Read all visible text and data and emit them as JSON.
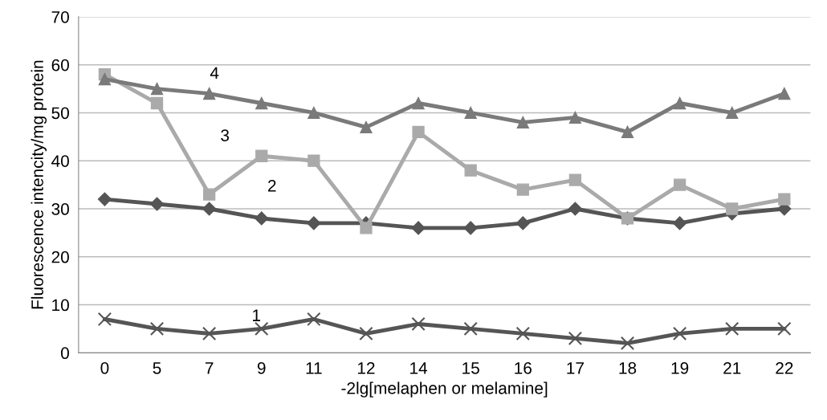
{
  "chart_data": {
    "type": "line",
    "xlabel": "-2lg[melaphen or melamine]",
    "ylabel": "Fluorescence intencity/mg protein",
    "categories": [
      "0",
      "5",
      "7",
      "9",
      "11",
      "12",
      "14",
      "15",
      "16",
      "17",
      "18",
      "19",
      "21",
      "22"
    ],
    "ylim": [
      0,
      70
    ],
    "yticks": [
      0,
      10,
      20,
      30,
      40,
      50,
      60,
      70
    ],
    "grid": "y",
    "legend": false,
    "series": [
      {
        "name": "1",
        "color": "#555555",
        "marker": "cross",
        "values": [
          7,
          5,
          4,
          5,
          7,
          4,
          6,
          5,
          4,
          3,
          2,
          4,
          5,
          5
        ]
      },
      {
        "name": "2",
        "color": "#555555",
        "marker": "diamond",
        "values": [
          32,
          31,
          30,
          28,
          27,
          27,
          26,
          26,
          27,
          30,
          28,
          27,
          29,
          30
        ]
      },
      {
        "name": "3",
        "color": "#aaaaaa",
        "marker": "square",
        "values": [
          58,
          52,
          33,
          41,
          40,
          26,
          46,
          38,
          34,
          36,
          28,
          35,
          30,
          32
        ]
      },
      {
        "name": "4",
        "color": "#7a7a7a",
        "marker": "triangle",
        "values": [
          57,
          55,
          54,
          52,
          50,
          47,
          52,
          50,
          48,
          49,
          46,
          52,
          50,
          54
        ]
      }
    ]
  }
}
